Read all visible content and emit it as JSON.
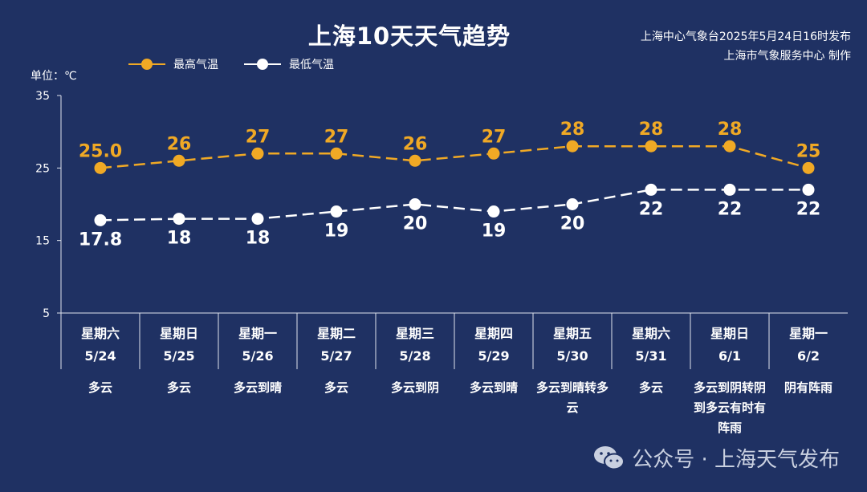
{
  "title": "上海10天天气趋势",
  "source": {
    "line1": "上海中心气象台2025年5月24日16时发布",
    "line2": "上海市气象服务中心 制作"
  },
  "unit_label": "单位：℃",
  "legend": {
    "high": "最高气温",
    "low": "最低气温"
  },
  "colors": {
    "background": "#1f3163",
    "high": "#f0a925",
    "low": "#ffffff",
    "axis": "#dfe4ee"
  },
  "watermark": "公众号 · 上海天气发布",
  "watermark_icon": "wechat-icon",
  "days": [
    {
      "weekday": "星期六",
      "date": "5/24",
      "weather": "多云"
    },
    {
      "weekday": "星期日",
      "date": "5/25",
      "weather": "多云"
    },
    {
      "weekday": "星期一",
      "date": "5/26",
      "weather": "多云到晴"
    },
    {
      "weekday": "星期二",
      "date": "5/27",
      "weather": "多云"
    },
    {
      "weekday": "星期三",
      "date": "5/28",
      "weather": "多云到阴"
    },
    {
      "weekday": "星期四",
      "date": "5/29",
      "weather": "多云到晴"
    },
    {
      "weekday": "星期五",
      "date": "5/30",
      "weather": "多云到晴转多云"
    },
    {
      "weekday": "星期六",
      "date": "5/31",
      "weather": "多云"
    },
    {
      "weekday": "星期日",
      "date": "6/1",
      "weather": "多云到阴转阴到多云有时有阵雨"
    },
    {
      "weekday": "星期一",
      "date": "6/2",
      "weather": "阴有阵雨"
    }
  ],
  "chart_data": {
    "type": "line",
    "categories": [
      "5/24",
      "5/25",
      "5/26",
      "5/27",
      "5/28",
      "5/29",
      "5/30",
      "5/31",
      "6/1",
      "6/2"
    ],
    "series": [
      {
        "name": "最高气温",
        "values": [
          25.0,
          26,
          27,
          27,
          26,
          27,
          28,
          28,
          28,
          25
        ],
        "labels": [
          "25.0",
          "26",
          "27",
          "27",
          "26",
          "27",
          "28",
          "28",
          "28",
          "25"
        ]
      },
      {
        "name": "最低气温",
        "values": [
          17.8,
          18,
          18,
          19,
          20,
          19,
          20,
          22,
          22,
          22
        ],
        "labels": [
          "17.8",
          "18",
          "18",
          "19",
          "20",
          "19",
          "20",
          "22",
          "22",
          "22"
        ]
      }
    ],
    "yticks": [
      5,
      15,
      25,
      35
    ],
    "ylim": [
      5,
      35
    ],
    "ylabel": "单位：℃",
    "line_style": "dashed",
    "legend_position": "top-left"
  }
}
